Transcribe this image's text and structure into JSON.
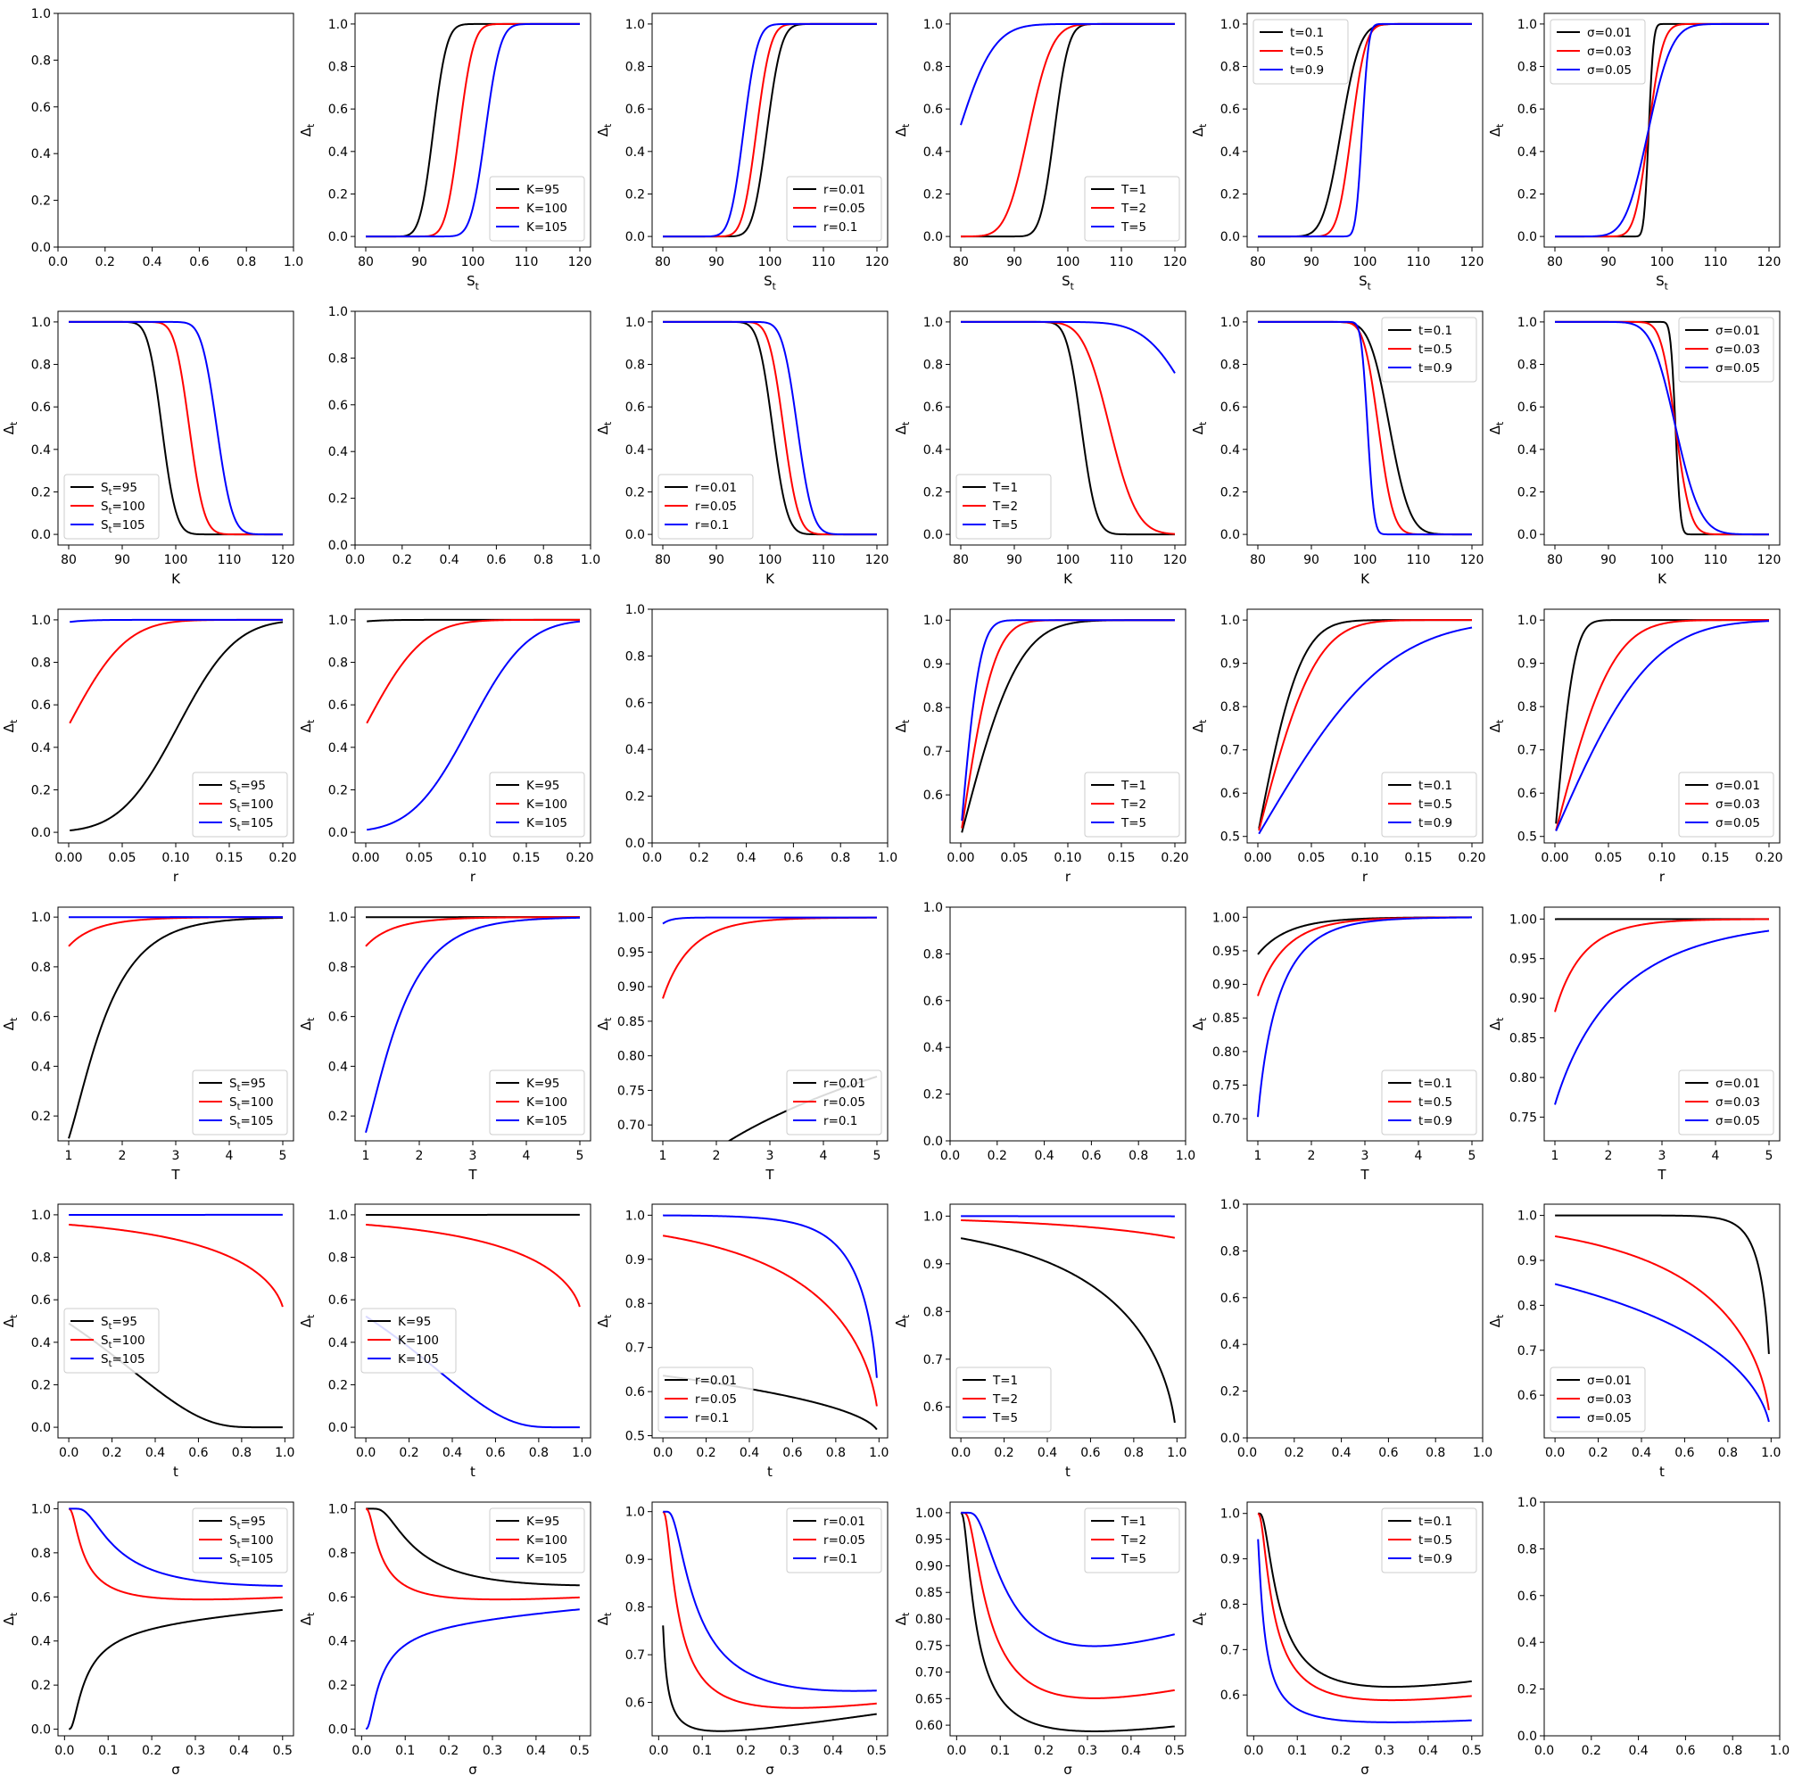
{
  "figure": {
    "rows": [
      "St",
      "K",
      "r",
      "T",
      "t",
      "sigma"
    ],
    "cols": [
      "St",
      "K",
      "r",
      "T",
      "t",
      "sigma"
    ],
    "colors": {
      "first": "#000000",
      "second": "#ff0000",
      "third": "#0000ff"
    }
  },
  "variables": {
    "St": {
      "label": "S",
      "sub": "t",
      "ticks": [
        80,
        90,
        100,
        110,
        120
      ],
      "range": [
        80,
        120
      ],
      "axis_min": 78,
      "axis_max": 122,
      "legend_main": "S",
      "legend_sub": "t",
      "values": [
        "95",
        "100",
        "105"
      ]
    },
    "K": {
      "label": "K",
      "sub": "",
      "ticks": [
        80,
        90,
        100,
        110,
        120
      ],
      "range": [
        80,
        120
      ],
      "axis_min": 78,
      "axis_max": 122,
      "legend_main": "K",
      "legend_sub": "",
      "values": [
        "95",
        "100",
        "105"
      ]
    },
    "r": {
      "label": "r",
      "sub": "",
      "ticks": [
        0.0,
        0.05,
        0.1,
        0.15,
        0.2
      ],
      "tick_labels": [
        "0.00",
        "0.05",
        "0.10",
        "0.15",
        "0.20"
      ],
      "range": [
        0.001,
        0.2
      ],
      "axis_min": -0.01,
      "axis_max": 0.21,
      "legend_main": "r",
      "legend_sub": "",
      "values": [
        "0.01",
        "0.05",
        "0.1"
      ]
    },
    "T": {
      "label": "T",
      "sub": "",
      "ticks": [
        1,
        2,
        3,
        4,
        5
      ],
      "range": [
        1,
        5
      ],
      "axis_min": 0.8,
      "axis_max": 5.2,
      "legend_main": "T",
      "legend_sub": "",
      "values": [
        "1",
        "2",
        "5"
      ]
    },
    "t": {
      "label": "t",
      "sub": "",
      "ticks": [
        0.0,
        0.2,
        0.4,
        0.6,
        0.8,
        1.0
      ],
      "tick_labels": [
        "0.0",
        "0.2",
        "0.4",
        "0.6",
        "0.8",
        "1.0"
      ],
      "range": [
        0,
        0.99
      ],
      "axis_min": -0.05,
      "axis_max": 1.04,
      "legend_main": "t",
      "legend_sub": "",
      "values": [
        "0.1",
        "0.5",
        "0.9"
      ]
    },
    "sigma": {
      "label": "σ",
      "sub": "",
      "ticks": [
        0.0,
        0.1,
        0.2,
        0.3,
        0.4,
        0.5
      ],
      "tick_labels": [
        "0.0",
        "0.1",
        "0.2",
        "0.3",
        "0.4",
        "0.5"
      ],
      "range": [
        0.01,
        0.5
      ],
      "axis_min": -0.015,
      "axis_max": 0.525,
      "legend_main": "σ",
      "legend_sub": "",
      "values": [
        "0.01",
        "0.03",
        "0.05"
      ]
    }
  },
  "ylabel": {
    "main": "Δ",
    "sub": "t"
  },
  "empty_axis_ticks": [
    "0.0",
    "0.2",
    "0.4",
    "0.6",
    "0.8",
    "1.0"
  ],
  "chart_data": {
    "type": "line",
    "layout": "6x6 grid of subplots; row = swept x variable, column = parameter varied across the three curves; diagonal panels are empty axes",
    "ylabel": "Δt",
    "legend_location": "per-panel",
    "panels": [
      {
        "row": 0,
        "col": 1,
        "xlabel": "St",
        "legend": [
          "K=95",
          "K=100",
          "K=105"
        ],
        "legend_loc": "lower-right",
        "yticks": [
          0,
          0.2,
          0.4,
          0.6,
          0.8,
          1.0
        ],
        "ylim": [
          -0.05,
          1.05
        ]
      },
      {
        "row": 0,
        "col": 2,
        "xlabel": "St",
        "legend": [
          "r=0.01",
          "r=0.05",
          "r=0.1"
        ],
        "legend_loc": "lower-right",
        "yticks": [
          0,
          0.2,
          0.4,
          0.6,
          0.8,
          1.0
        ],
        "ylim": [
          -0.05,
          1.05
        ]
      },
      {
        "row": 0,
        "col": 3,
        "xlabel": "St",
        "legend": [
          "T=1",
          "T=2",
          "T=5"
        ],
        "legend_loc": "lower-right",
        "yticks": [
          0,
          0.2,
          0.4,
          0.6,
          0.8,
          1.0
        ],
        "ylim": [
          -0.05,
          1.05
        ]
      },
      {
        "row": 0,
        "col": 4,
        "xlabel": "St",
        "legend": [
          "t=0.1",
          "t=0.5",
          "t=0.9"
        ],
        "legend_loc": "upper-left",
        "yticks": [
          0,
          0.2,
          0.4,
          0.6,
          0.8,
          1.0
        ],
        "ylim": [
          -0.05,
          1.05
        ]
      },
      {
        "row": 0,
        "col": 5,
        "xlabel": "St",
        "legend": [
          "σ=0.01",
          "σ=0.03",
          "σ=0.05"
        ],
        "legend_loc": "upper-left",
        "yticks": [
          0,
          0.2,
          0.4,
          0.6,
          0.8,
          1.0
        ],
        "ylim": [
          -0.05,
          1.05
        ]
      },
      {
        "row": 1,
        "col": 0,
        "xlabel": "K",
        "legend": [
          "St=95",
          "St=100",
          "St=105"
        ],
        "legend_loc": "lower-left",
        "yticks": [
          0,
          0.2,
          0.4,
          0.6,
          0.8,
          1.0
        ],
        "ylim": [
          -0.05,
          1.05
        ]
      },
      {
        "row": 1,
        "col": 2,
        "xlabel": "K",
        "legend": [
          "r=0.01",
          "r=0.05",
          "r=0.1"
        ],
        "legend_loc": "lower-left",
        "yticks": [
          0,
          0.2,
          0.4,
          0.6,
          0.8,
          1.0
        ],
        "ylim": [
          -0.05,
          1.05
        ]
      },
      {
        "row": 1,
        "col": 3,
        "xlabel": "K",
        "legend": [
          "T=1",
          "T=2",
          "T=5"
        ],
        "legend_loc": "lower-left",
        "yticks": [
          0,
          0.2,
          0.4,
          0.6,
          0.8,
          1.0
        ],
        "ylim": [
          -0.05,
          1.05
        ]
      },
      {
        "row": 1,
        "col": 4,
        "xlabel": "K",
        "legend": [
          "t=0.1",
          "t=0.5",
          "t=0.9"
        ],
        "legend_loc": "upper-right",
        "yticks": [
          0,
          0.2,
          0.4,
          0.6,
          0.8,
          1.0
        ],
        "ylim": [
          -0.05,
          1.05
        ]
      },
      {
        "row": 1,
        "col": 5,
        "xlabel": "K",
        "legend": [
          "σ=0.01",
          "σ=0.03",
          "σ=0.05"
        ],
        "legend_loc": "upper-right",
        "yticks": [
          0,
          0.2,
          0.4,
          0.6,
          0.8,
          1.0
        ],
        "ylim": [
          -0.05,
          1.05
        ]
      },
      {
        "row": 2,
        "col": 0,
        "xlabel": "r",
        "legend": [
          "St=95",
          "St=100",
          "St=105"
        ],
        "legend_loc": "lower-right",
        "yticks": [
          0,
          0.2,
          0.4,
          0.6,
          0.8,
          1.0
        ],
        "ylim": [
          -0.05,
          1.05
        ]
      },
      {
        "row": 2,
        "col": 1,
        "xlabel": "r",
        "legend": [
          "K=95",
          "K=100",
          "K=105"
        ],
        "legend_loc": "lower-right",
        "yticks": [
          0,
          0.2,
          0.4,
          0.6,
          0.8,
          1.0
        ],
        "ylim": [
          -0.05,
          1.05
        ]
      },
      {
        "row": 2,
        "col": 3,
        "xlabel": "r",
        "legend": [
          "T=1",
          "T=2",
          "T=5"
        ],
        "legend_loc": "lower-right",
        "yticks": [
          0.6,
          0.7,
          0.8,
          0.9,
          1.0
        ],
        "ylim": [
          0.49,
          1.025
        ]
      },
      {
        "row": 2,
        "col": 4,
        "xlabel": "r",
        "legend": [
          "t=0.1",
          "t=0.5",
          "t=0.9"
        ],
        "legend_loc": "lower-right",
        "yticks": [
          0.5,
          0.6,
          0.7,
          0.8,
          0.9,
          1.0
        ],
        "ylim": [
          0.485,
          1.025
        ]
      },
      {
        "row": 2,
        "col": 5,
        "xlabel": "r",
        "legend": [
          "σ=0.01",
          "σ=0.03",
          "σ=0.05"
        ],
        "legend_loc": "lower-right",
        "yticks": [
          0.5,
          0.6,
          0.7,
          0.8,
          0.9,
          1.0
        ],
        "ylim": [
          0.485,
          1.025
        ]
      },
      {
        "row": 3,
        "col": 0,
        "xlabel": "T",
        "legend": [
          "St=95",
          "St=100",
          "St=105"
        ],
        "legend_loc": "lower-right",
        "yticks": [
          0.2,
          0.4,
          0.6,
          0.8,
          1.0
        ],
        "ylim": [
          0.1,
          1.04
        ]
      },
      {
        "row": 3,
        "col": 1,
        "xlabel": "T",
        "legend": [
          "K=95",
          "K=100",
          "K=105"
        ],
        "legend_loc": "lower-right",
        "yticks": [
          0.2,
          0.4,
          0.6,
          0.8,
          1.0
        ],
        "ylim": [
          0.1,
          1.04
        ]
      },
      {
        "row": 3,
        "col": 2,
        "xlabel": "T",
        "legend": [
          "r=0.01",
          "r=0.05",
          "r=0.1"
        ],
        "legend_loc": "lower-right",
        "yticks": [
          0.7,
          0.75,
          0.8,
          0.85,
          0.9,
          0.95,
          1.0
        ],
        "ylim": [
          0.677,
          1.015
        ]
      },
      {
        "row": 3,
        "col": 4,
        "xlabel": "T",
        "legend": [
          "t=0.1",
          "t=0.5",
          "t=0.9"
        ],
        "legend_loc": "lower-right",
        "yticks": [
          0.7,
          0.75,
          0.8,
          0.85,
          0.9,
          0.95,
          1.0
        ],
        "ylim": [
          0.667,
          1.015
        ]
      },
      {
        "row": 3,
        "col": 5,
        "xlabel": "T",
        "legend": [
          "σ=0.01",
          "σ=0.03",
          "σ=0.05"
        ],
        "legend_loc": "lower-right",
        "yticks": [
          0.75,
          0.8,
          0.85,
          0.9,
          0.95,
          1.0
        ],
        "ylim": [
          0.72,
          1.015
        ]
      },
      {
        "row": 4,
        "col": 0,
        "xlabel": "t",
        "legend": [
          "St=95",
          "St=100",
          "St=105"
        ],
        "legend_loc": "center-left",
        "yticks": [
          0,
          0.2,
          0.4,
          0.6,
          0.8,
          1.0
        ],
        "ylim": [
          -0.05,
          1.05
        ]
      },
      {
        "row": 4,
        "col": 1,
        "xlabel": "t",
        "legend": [
          "K=95",
          "K=100",
          "K=105"
        ],
        "legend_loc": "center-left",
        "yticks": [
          0,
          0.2,
          0.4,
          0.6,
          0.8,
          1.0
        ],
        "ylim": [
          -0.05,
          1.05
        ]
      },
      {
        "row": 4,
        "col": 2,
        "xlabel": "t",
        "legend": [
          "r=0.01",
          "r=0.05",
          "r=0.1"
        ],
        "legend_loc": "lower-left",
        "yticks": [
          0.5,
          0.6,
          0.7,
          0.8,
          0.9,
          1.0
        ],
        "ylim": [
          0.495,
          1.025
        ]
      },
      {
        "row": 4,
        "col": 3,
        "xlabel": "t",
        "legend": [
          "T=1",
          "T=2",
          "T=5"
        ],
        "legend_loc": "lower-left",
        "yticks": [
          0.6,
          0.7,
          0.8,
          0.9,
          1.0
        ],
        "ylim": [
          0.535,
          1.025
        ]
      },
      {
        "row": 4,
        "col": 5,
        "xlabel": "t",
        "legend": [
          "σ=0.01",
          "σ=0.03",
          "σ=0.05"
        ],
        "legend_loc": "lower-left",
        "yticks": [
          0.6,
          0.7,
          0.8,
          0.9,
          1.0
        ],
        "ylim": [
          0.505,
          1.025
        ]
      },
      {
        "row": 5,
        "col": 0,
        "xlabel": "σ",
        "legend": [
          "St=95",
          "St=100",
          "St=105"
        ],
        "legend_loc": "upper-right",
        "yticks": [
          0,
          0.2,
          0.4,
          0.6,
          0.8,
          1.0
        ],
        "ylim": [
          -0.03,
          1.03
        ]
      },
      {
        "row": 5,
        "col": 1,
        "xlabel": "σ",
        "legend": [
          "K=95",
          "K=100",
          "K=105"
        ],
        "legend_loc": "upper-right",
        "yticks": [
          0,
          0.2,
          0.4,
          0.6,
          0.8,
          1.0
        ],
        "ylim": [
          -0.03,
          1.03
        ]
      },
      {
        "row": 5,
        "col": 2,
        "xlabel": "σ",
        "legend": [
          "r=0.01",
          "r=0.05",
          "r=0.1"
        ],
        "legend_loc": "upper-right",
        "yticks": [
          0.6,
          0.7,
          0.8,
          0.9,
          1.0
        ],
        "ylim": [
          0.53,
          1.02
        ]
      },
      {
        "row": 5,
        "col": 3,
        "xlabel": "σ",
        "legend": [
          "T=1",
          "T=2",
          "T=5"
        ],
        "legend_loc": "upper-right",
        "yticks": [
          0.6,
          0.65,
          0.7,
          0.75,
          0.8,
          0.85,
          0.9,
          0.95,
          1.0
        ],
        "ylim": [
          0.58,
          1.02
        ]
      },
      {
        "row": 5,
        "col": 4,
        "xlabel": "σ",
        "legend": [
          "t=0.1",
          "t=0.5",
          "t=0.9"
        ],
        "legend_loc": "upper-right",
        "yticks": [
          0.6,
          0.7,
          0.8,
          0.9,
          1.0
        ],
        "ylim": [
          0.51,
          1.025
        ]
      }
    ],
    "empty_panels": [
      [
        0,
        0
      ],
      [
        1,
        1
      ],
      [
        2,
        2
      ],
      [
        3,
        3
      ],
      [
        4,
        4
      ],
      [
        5,
        5
      ]
    ],
    "empty_panel_axes": {
      "xlim": [
        0,
        1
      ],
      "ylim": [
        0,
        1
      ]
    }
  }
}
